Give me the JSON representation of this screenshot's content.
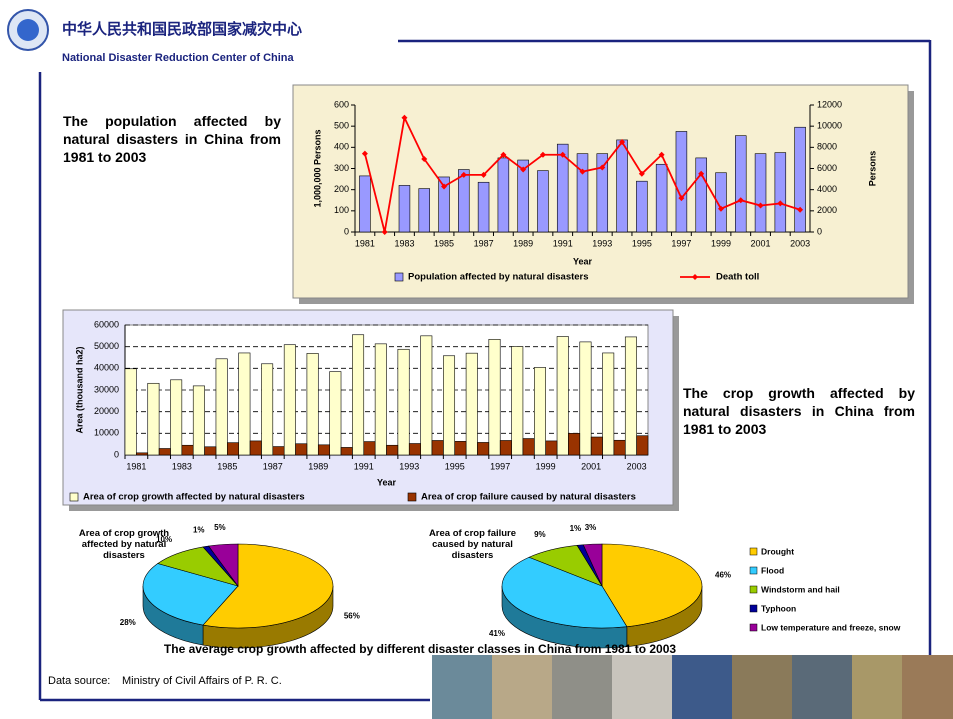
{
  "header": {
    "title_cn": "中华人民共和国民政部国家减灾中心",
    "title_en": "National Disaster Reduction Center of China"
  },
  "chart_data": [
    {
      "type": "bar",
      "title": "The population affected by natural disasters in China from 1981 to 2003",
      "categories": [
        "1981",
        null,
        "1983",
        null,
        "1985",
        null,
        "1987",
        null,
        "1989",
        null,
        "1991",
        null,
        "1993",
        null,
        "1995",
        null,
        "1997",
        null,
        "1999",
        null,
        "2001",
        null,
        "2003"
      ],
      "xlabel": "Year",
      "ylabel": "1,000,000 Persons",
      "y2label": "Persons",
      "ylim": [
        0,
        600
      ],
      "yticks": [
        0,
        100,
        200,
        300,
        400,
        500,
        600
      ],
      "y2lim": [
        0,
        12000
      ],
      "y2ticks": [
        0,
        2000,
        4000,
        6000,
        8000,
        10000,
        12000
      ],
      "series": [
        {
          "name": "Population affected by natural disasters",
          "type": "bar",
          "color": "#9999ff",
          "values": [
            265,
            null,
            220,
            205,
            260,
            295,
            235,
            350,
            340,
            290,
            415,
            370,
            370,
            435,
            240,
            320,
            475,
            350,
            280,
            455,
            370,
            375,
            495
          ]
        },
        {
          "name": "Death toll",
          "type": "line",
          "axis": "y2",
          "color": "#ff0000",
          "values": [
            7400,
            0,
            10800,
            6900,
            4300,
            5400,
            5400,
            7300,
            5900,
            7300,
            7300,
            5700,
            6100,
            8500,
            5500,
            7300,
            3200,
            5500,
            2200,
            3000,
            2500,
            2700,
            2100
          ]
        }
      ]
    },
    {
      "type": "bar",
      "title": "The crop growth affected by natural disasters in China from 1981 to 2003",
      "categories": [
        "1981",
        null,
        "1983",
        null,
        "1985",
        null,
        "1987",
        null,
        "1989",
        null,
        "1991",
        null,
        "1993",
        null,
        "1995",
        null,
        "1997",
        null,
        "1999",
        null,
        "2001",
        null,
        "2003"
      ],
      "xlabel": "Year",
      "ylabel": "Area (thousand ha2)",
      "grid": true,
      "ylim": [
        0,
        60000
      ],
      "yticks": [
        0,
        10000,
        20000,
        30000,
        40000,
        50000,
        60000
      ],
      "series": [
        {
          "name": "Area of crop growth affected by natural disasters",
          "type": "bar",
          "color": "#ffffcc",
          "values": [
            39800,
            33100,
            34700,
            31900,
            44400,
            47100,
            42100,
            50900,
            46900,
            38500,
            55500,
            51300,
            48800,
            55000,
            45800,
            47000,
            53400,
            50100,
            40400,
            54700,
            52200,
            47100,
            54500
          ]
        },
        {
          "name": "Area of crop failure caused by natural disasters",
          "type": "bar",
          "color": "#993300",
          "values": [
            1000,
            3000,
            4500,
            3800,
            5700,
            6500,
            3900,
            5200,
            4700,
            3500,
            6200,
            4500,
            5300,
            6700,
            6300,
            5800,
            6700,
            7600,
            6500,
            10000,
            8300,
            6800,
            8900
          ]
        }
      ]
    },
    {
      "type": "pie",
      "title": "The average crop growth affected by different disaster classes in China from 1981 to 2003",
      "categories": [
        "Drought",
        "Flood",
        "Windstorm and hail",
        "Typhoon",
        "Low temperature and freeze, snow"
      ],
      "colors": [
        "#ffcc00",
        "#33ccff",
        "#99cc00",
        "#000099",
        "#990099"
      ],
      "pies": [
        {
          "title": "Area of crop growth affected by natural disasters",
          "values": [
            56,
            28,
            10,
            1,
            5
          ],
          "value_labels": [
            "56%",
            "28%",
            "10%",
            "1%",
            "5%"
          ]
        },
        {
          "title": "Area of crop failure caused by natural disasters",
          "values": [
            46,
            41,
            9,
            1,
            3
          ],
          "value_labels": [
            "46%",
            "41%",
            "9%",
            "1%",
            "3%"
          ]
        }
      ]
    }
  ],
  "footer": {
    "label": "Data source:",
    "text": "Ministry of Civil Affairs of P. R. C."
  }
}
